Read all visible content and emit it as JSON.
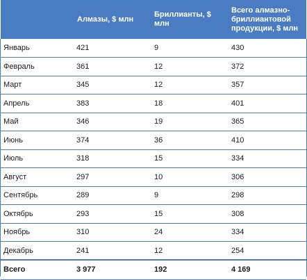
{
  "table": {
    "headers": [
      "",
      "Алмазы, $ млн",
      "Бриллианты, $ млн",
      "Всего алмазно-бриллиантовой продукции, $ млн"
    ],
    "rows": [
      [
        "Январь",
        "421",
        "9",
        "430"
      ],
      [
        "Февраль",
        "361",
        "12",
        "372"
      ],
      [
        "Март",
        "345",
        "12",
        "357"
      ],
      [
        "Апрель",
        "383",
        "18",
        "401"
      ],
      [
        "Май",
        "346",
        "19",
        "365"
      ],
      [
        "Июнь",
        "374",
        "36",
        "410"
      ],
      [
        "Июль",
        "318",
        "15",
        "334"
      ],
      [
        "Август",
        "297",
        "10",
        "306"
      ],
      [
        "Сентябрь",
        "289",
        "9",
        "298"
      ],
      [
        "Октябрь",
        "293",
        "15",
        "308"
      ],
      [
        "Ноябрь",
        "310",
        "24",
        "334"
      ],
      [
        "Декабрь",
        "241",
        "12",
        "254"
      ]
    ],
    "total": [
      "Всего",
      "3 977",
      "192",
      "4 169"
    ]
  },
  "colors": {
    "header_bg": "#4a7cc4",
    "header_text": "#ffffff",
    "rule": "#4a7cc4"
  }
}
